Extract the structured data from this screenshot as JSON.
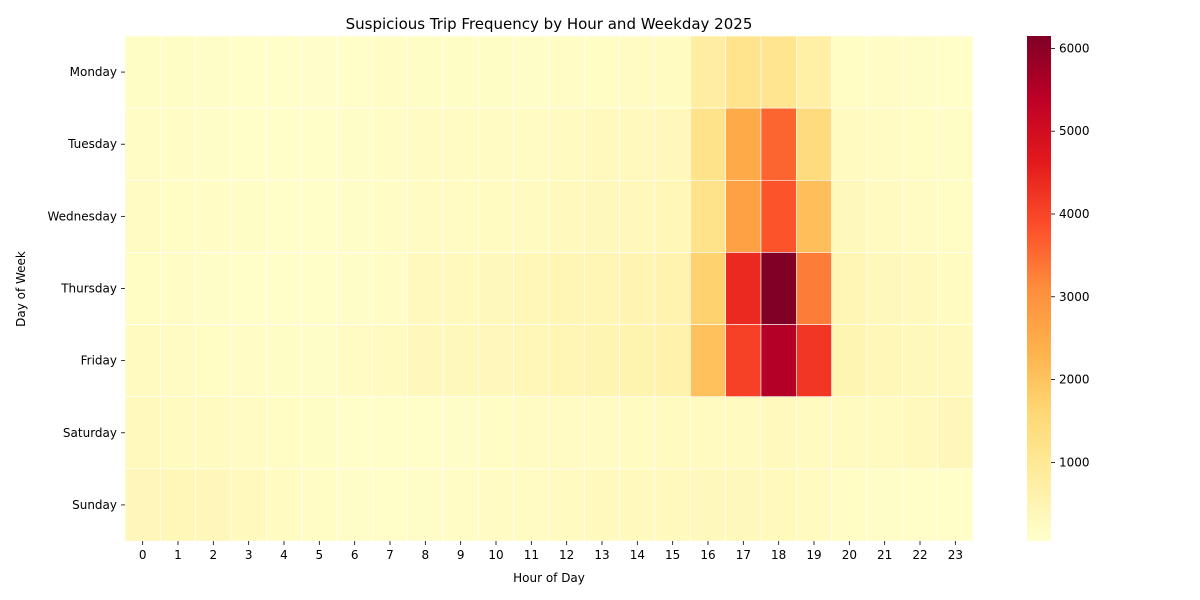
{
  "chart_data": {
    "type": "heatmap",
    "title": "Suspicious Trip Frequency by Hour and Weekday 2025",
    "xlabel": "Hour of Day",
    "ylabel": "Day of Week",
    "x_categories": [
      "0",
      "1",
      "2",
      "3",
      "4",
      "5",
      "6",
      "7",
      "8",
      "9",
      "10",
      "11",
      "12",
      "13",
      "14",
      "15",
      "16",
      "17",
      "18",
      "19",
      "20",
      "21",
      "22",
      "23"
    ],
    "y_categories": [
      "Monday",
      "Tuesday",
      "Wednesday",
      "Thursday",
      "Friday",
      "Saturday",
      "Sunday"
    ],
    "values": [
      [
        150,
        150,
        140,
        120,
        100,
        90,
        120,
        160,
        150,
        150,
        150,
        140,
        170,
        190,
        210,
        240,
        800,
        1150,
        1100,
        700,
        180,
        160,
        140,
        110
      ],
      [
        170,
        160,
        140,
        120,
        120,
        110,
        140,
        170,
        210,
        200,
        210,
        230,
        260,
        290,
        310,
        360,
        1200,
        2500,
        3600,
        1450,
        270,
        220,
        180,
        150
      ],
      [
        200,
        180,
        160,
        150,
        120,
        110,
        140,
        170,
        220,
        210,
        240,
        280,
        300,
        330,
        360,
        410,
        1200,
        2700,
        3800,
        2100,
        340,
        280,
        230,
        180
      ],
      [
        190,
        160,
        140,
        120,
        110,
        100,
        130,
        160,
        310,
        290,
        350,
        390,
        430,
        460,
        500,
        550,
        1700,
        4400,
        6150,
        3300,
        430,
        340,
        290,
        240
      ],
      [
        260,
        200,
        180,
        160,
        150,
        140,
        200,
        250,
        360,
        340,
        360,
        400,
        430,
        480,
        540,
        600,
        2050,
        4050,
        5500,
        4200,
        480,
        400,
        340,
        300
      ],
      [
        320,
        280,
        250,
        220,
        180,
        150,
        120,
        110,
        120,
        140,
        180,
        200,
        210,
        220,
        240,
        250,
        260,
        280,
        290,
        270,
        260,
        270,
        320,
        370
      ],
      [
        380,
        400,
        370,
        300,
        240,
        180,
        130,
        110,
        130,
        170,
        200,
        230,
        260,
        290,
        300,
        310,
        330,
        340,
        320,
        270,
        180,
        140,
        110,
        100
      ]
    ],
    "colormap": "YlOrRd",
    "colorbar": {
      "min": 50,
      "max": 6150,
      "ticks": [
        "1000",
        "2000",
        "3000",
        "4000",
        "5000",
        "6000"
      ]
    },
    "grid": false,
    "cell_borders": "white"
  }
}
